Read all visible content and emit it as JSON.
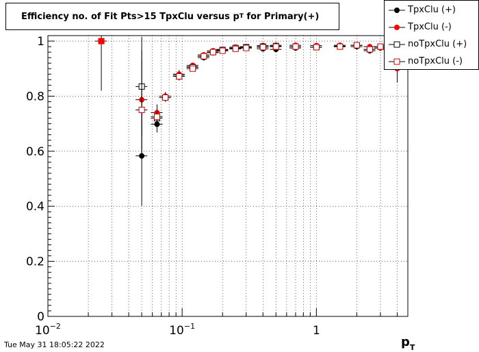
{
  "title_parts": {
    "main": "Efficiency no. of Fit Pts>15 TpxClu versus p",
    "sub": "T",
    "tail": " for Primary(+)"
  },
  "footer": "Tue May 31 18:05:22 2022",
  "chart_data": {
    "type": "scatter",
    "title": "Efficiency no. of Fit Pts>15 TpxClu versus pT for Primary(+)",
    "xlabel": "pT",
    "ylabel": "",
    "x_scale": "log",
    "xlim": [
      0.01,
      4.8
    ],
    "ylim": [
      0,
      1.02
    ],
    "grid": true,
    "legend_position": "top-right",
    "y_ticks": [
      "0",
      "0.2",
      "0.4",
      "0.6",
      "0.8",
      "1"
    ],
    "x_ticks": [
      {
        "base": "10",
        "exp": "−2"
      },
      {
        "base": "10",
        "exp": "−1"
      },
      {
        "base": "1",
        "exp": ""
      }
    ],
    "series": [
      {
        "name": "TpxClu (+)",
        "color": "#000000",
        "marker": "filled-circle",
        "x": [
          0.05,
          0.065,
          0.075,
          0.095,
          0.12,
          0.145,
          0.17,
          0.2,
          0.25,
          0.3,
          0.4,
          0.5,
          0.7,
          1.0,
          1.5,
          2.0,
          2.5,
          3.0,
          3.5,
          4.0
        ],
        "y": [
          0.583,
          0.698,
          0.795,
          0.876,
          0.907,
          0.94,
          0.958,
          0.965,
          0.972,
          0.975,
          0.972,
          0.97,
          0.975,
          0.978,
          0.982,
          0.98,
          0.965,
          0.975,
          0.97,
          0.95
        ]
      },
      {
        "name": "TpxClu (-)",
        "color": "#ff0000",
        "marker": "filled-circle",
        "x": [
          0.05,
          0.065,
          0.075,
          0.095,
          0.12,
          0.145,
          0.17,
          0.2,
          0.25,
          0.3,
          0.4,
          0.5,
          0.7,
          1.0,
          1.5,
          2.0,
          2.5,
          3.0,
          3.5,
          4.0
        ],
        "y": [
          0.787,
          0.74,
          0.8,
          0.88,
          0.912,
          0.95,
          0.965,
          0.97,
          0.978,
          0.98,
          0.984,
          0.985,
          0.985,
          0.984,
          0.985,
          0.985,
          0.98,
          0.975,
          0.985,
          0.9
        ]
      },
      {
        "name": "noTpxClu (+)",
        "color": "#000000",
        "marker": "open-square",
        "x": [
          0.05,
          0.065,
          0.075,
          0.095,
          0.12,
          0.145,
          0.17,
          0.2,
          0.25,
          0.3,
          0.4,
          0.5,
          0.7,
          1.0,
          1.5,
          2.0,
          2.5,
          3.0,
          3.5,
          4.0
        ],
        "y": [
          0.835,
          0.72,
          0.795,
          0.872,
          0.905,
          0.945,
          0.96,
          0.968,
          0.975,
          0.978,
          0.98,
          0.982,
          0.98,
          0.978,
          0.98,
          0.985,
          0.97,
          0.98,
          0.975,
          0.98
        ]
      },
      {
        "name": "noTpxClu (-)",
        "color": "#cc0000",
        "marker": "open-square",
        "x": [
          0.025,
          0.05,
          0.065,
          0.075,
          0.095,
          0.12,
          0.145,
          0.17,
          0.2,
          0.25,
          0.3,
          0.4,
          0.5,
          0.7,
          1.0,
          1.5,
          2.0,
          2.5,
          3.0,
          3.5,
          4.0
        ],
        "y": [
          1.0,
          0.75,
          0.725,
          0.795,
          0.872,
          0.9,
          0.945,
          0.96,
          0.965,
          0.972,
          0.975,
          0.978,
          0.98,
          0.98,
          0.978,
          0.98,
          0.985,
          0.97,
          0.98,
          0.975,
          0.985
        ]
      }
    ]
  }
}
